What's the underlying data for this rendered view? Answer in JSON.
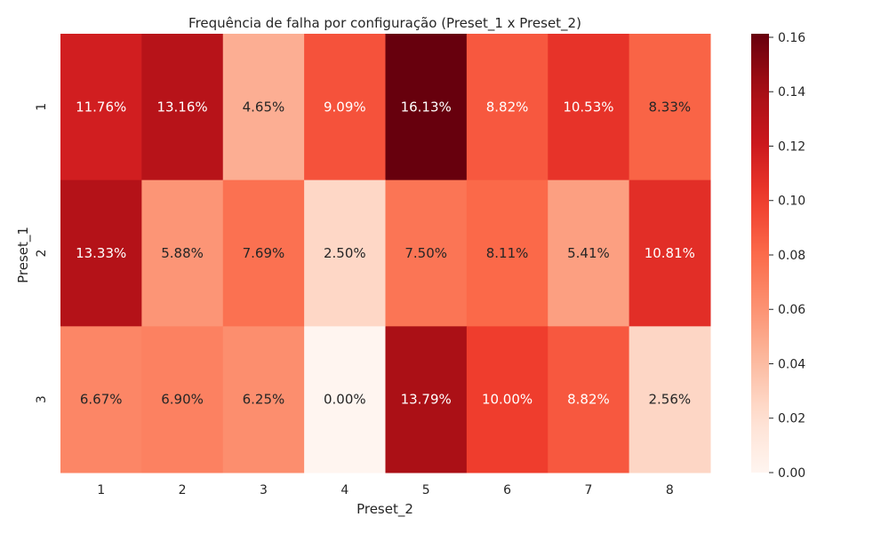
{
  "chart_data": {
    "type": "heatmap",
    "title": "Frequência de falha por configuração (Preset_1 x Preset_2)",
    "xlabel": "Preset_2",
    "ylabel": "Preset_1",
    "x_categories": [
      "1",
      "2",
      "3",
      "4",
      "5",
      "6",
      "7",
      "8"
    ],
    "y_categories": [
      "1",
      "2",
      "3"
    ],
    "values": [
      [
        0.1176,
        0.1316,
        0.0465,
        0.0909,
        0.1613,
        0.0882,
        0.1053,
        0.0833
      ],
      [
        0.1333,
        0.0588,
        0.0769,
        0.025,
        0.075,
        0.0811,
        0.0541,
        0.1081
      ],
      [
        0.0667,
        0.069,
        0.0625,
        0.0,
        0.1379,
        0.1,
        0.0882,
        0.0256
      ]
    ],
    "annotations": [
      [
        "11.76%",
        "13.16%",
        "4.65%",
        "9.09%",
        "16.13%",
        "8.82%",
        "10.53%",
        "8.33%"
      ],
      [
        "13.33%",
        "5.88%",
        "7.69%",
        "2.50%",
        "7.50%",
        "8.11%",
        "5.41%",
        "10.81%"
      ],
      [
        "6.67%",
        "6.90%",
        "6.25%",
        "0.00%",
        "13.79%",
        "10.00%",
        "8.82%",
        "2.56%"
      ]
    ],
    "colormap": "Reds",
    "colorbar": {
      "range": [
        0.0,
        0.1613
      ],
      "ticks": [
        "0.00",
        "0.02",
        "0.04",
        "0.06",
        "0.08",
        "0.10",
        "0.12",
        "0.14",
        "0.16"
      ],
      "tick_values": [
        0.0,
        0.02,
        0.04,
        0.06,
        0.08,
        0.1,
        0.12,
        0.14,
        0.16
      ]
    }
  }
}
